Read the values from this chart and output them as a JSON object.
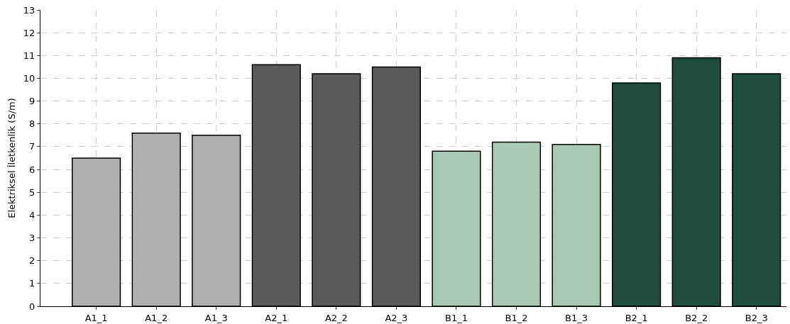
{
  "chart_data": {
    "type": "bar",
    "ylabel": "Elektriksel İletkenlik (S/m)",
    "categories": [
      "A1_1",
      "A1_2",
      "A1_3",
      "A2_1",
      "A2_2",
      "A2_3",
      "B1_1",
      "B1_2",
      "B1_3",
      "B2_1",
      "B2_2",
      "B2_3"
    ],
    "values": [
      6.5,
      7.6,
      7.5,
      10.6,
      10.2,
      10.5,
      6.8,
      7.2,
      7.1,
      9.8,
      10.9,
      10.2
    ],
    "colors": [
      "#b0b0b0",
      "#b0b0b0",
      "#b0b0b0",
      "#5a5a5a",
      "#5a5a5a",
      "#5a5a5a",
      "#a8c8b4",
      "#a8c8b4",
      "#a8c8b4",
      "#1e4d3e",
      "#1e4d3e",
      "#1e4d3e"
    ],
    "ylim": [
      0,
      13
    ],
    "yticks": [
      0,
      1,
      2,
      3,
      4,
      5,
      6,
      7,
      8,
      9,
      10,
      11,
      12,
      13
    ],
    "grid": true,
    "legend": false
  }
}
